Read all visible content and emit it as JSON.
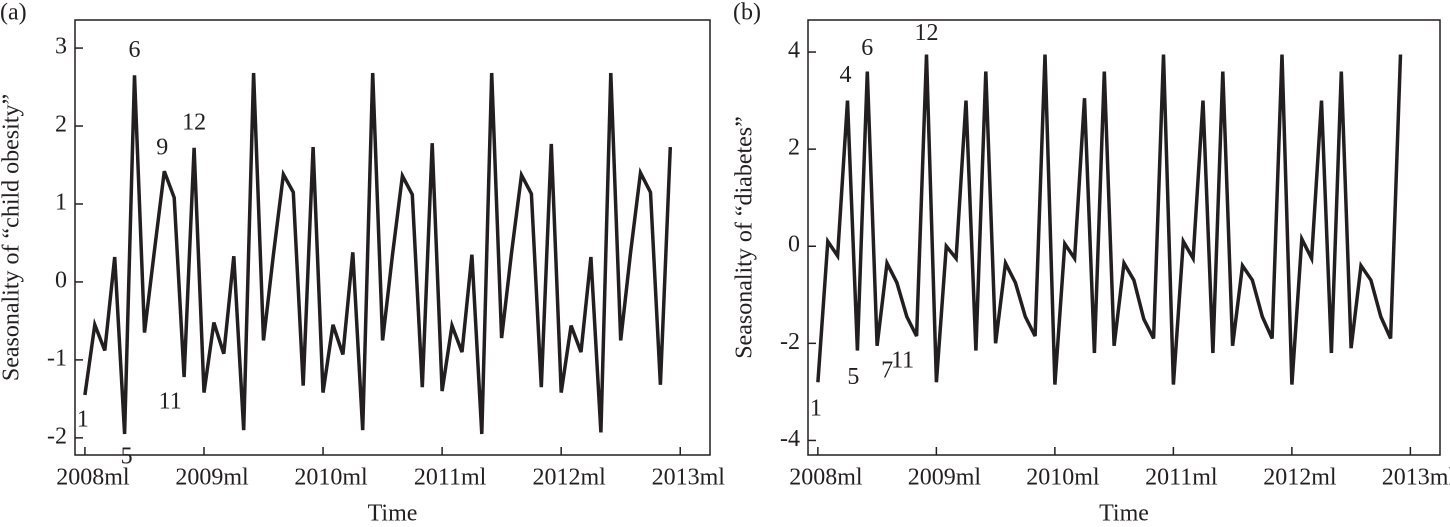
{
  "chart_data": [
    {
      "type": "line",
      "panel": "(a)",
      "ylabel": "Seasonality of “child obesity”",
      "xlabel": "Time",
      "x": [
        0,
        1,
        2,
        3,
        4,
        5,
        6,
        7,
        8,
        9,
        10,
        11,
        12,
        13,
        14,
        15,
        16,
        17,
        18,
        19,
        20,
        21,
        22,
        23,
        24,
        25,
        26,
        27,
        28,
        29,
        30,
        31,
        32,
        33,
        34,
        35,
        36,
        37,
        38,
        39,
        40,
        41,
        42,
        43,
        44,
        45,
        46,
        47,
        48,
        49,
        50,
        51,
        52,
        53,
        54,
        55,
        56,
        57,
        58,
        59
      ],
      "series": [
        {
          "name": "child obesity",
          "color": "#231f20",
          "values": [
            -1.45,
            -0.55,
            -0.88,
            0.32,
            -1.95,
            2.65,
            -0.65,
            0.4,
            1.42,
            1.08,
            -1.22,
            1.72,
            -1.42,
            -0.52,
            -0.92,
            0.33,
            -1.9,
            2.68,
            -0.75,
            0.35,
            1.38,
            1.15,
            -1.33,
            1.73,
            -1.42,
            -0.55,
            -0.93,
            0.38,
            -1.9,
            2.68,
            -0.75,
            0.35,
            1.36,
            1.12,
            -1.35,
            1.78,
            -1.4,
            -0.56,
            -0.9,
            0.35,
            -1.95,
            2.68,
            -0.72,
            0.38,
            1.37,
            1.13,
            -1.35,
            1.77,
            -1.42,
            -0.56,
            -0.9,
            0.32,
            -1.93,
            2.68,
            -0.75,
            0.38,
            1.4,
            1.15,
            -1.32,
            1.73
          ]
        }
      ],
      "annotations": [
        "1",
        "5",
        "6",
        "9",
        "11",
        "12"
      ],
      "xlim": [
        -1,
        63
      ],
      "xticks": [
        {
          "value": 0,
          "label": "2008ml"
        },
        {
          "value": 12,
          "label": "2009ml"
        },
        {
          "value": 24,
          "label": "2010ml"
        },
        {
          "value": 36,
          "label": "2011ml"
        },
        {
          "value": 48,
          "label": "2012ml"
        },
        {
          "value": 60,
          "label": "2013ml"
        }
      ],
      "ylim": [
        -2.22,
        3.36
      ],
      "yticks": [
        -2,
        -1,
        0,
        1,
        2,
        3
      ]
    },
    {
      "type": "line",
      "panel": "(b)",
      "ylabel": "Seasonality of “diabetes”",
      "xlabel": "Time",
      "x": [
        0,
        1,
        2,
        3,
        4,
        5,
        6,
        7,
        8,
        9,
        10,
        11,
        12,
        13,
        14,
        15,
        16,
        17,
        18,
        19,
        20,
        21,
        22,
        23,
        24,
        25,
        26,
        27,
        28,
        29,
        30,
        31,
        32,
        33,
        34,
        35,
        36,
        37,
        38,
        39,
        40,
        41,
        42,
        43,
        44,
        45,
        46,
        47,
        48,
        49,
        50,
        51,
        52,
        53,
        54,
        55,
        56,
        57,
        58,
        59
      ],
      "series": [
        {
          "name": "diabetes",
          "color": "#231f20",
          "values": [
            -2.8,
            0.1,
            -0.2,
            3.0,
            -2.15,
            3.6,
            -2.05,
            -0.35,
            -0.75,
            -1.45,
            -1.85,
            3.95,
            -2.8,
            0.0,
            -0.25,
            3.0,
            -2.15,
            3.6,
            -2.0,
            -0.35,
            -0.75,
            -1.45,
            -1.85,
            3.95,
            -2.85,
            0.05,
            -0.25,
            3.05,
            -2.2,
            3.6,
            -2.05,
            -0.35,
            -0.7,
            -1.5,
            -1.9,
            3.95,
            -2.85,
            0.1,
            -0.25,
            3.0,
            -2.2,
            3.6,
            -2.05,
            -0.4,
            -0.7,
            -1.45,
            -1.9,
            3.95,
            -2.85,
            0.15,
            -0.25,
            3.0,
            -2.2,
            3.6,
            -2.1,
            -0.4,
            -0.7,
            -1.45,
            -1.9,
            3.95
          ]
        }
      ],
      "annotations": [
        "1",
        "4",
        "5",
        "6",
        "7",
        "11",
        "12"
      ],
      "xlim": [
        -1,
        63
      ],
      "xticks": [
        {
          "value": 0,
          "label": "2008ml"
        },
        {
          "value": 12,
          "label": "2009ml"
        },
        {
          "value": 24,
          "label": "2010ml"
        },
        {
          "value": 36,
          "label": "2011ml"
        },
        {
          "value": 48,
          "label": "2012ml"
        },
        {
          "value": 60,
          "label": "2013ml"
        }
      ],
      "ylim": [
        -4.3,
        4.66
      ],
      "yticks": [
        -4,
        -2,
        0,
        2,
        4
      ]
    }
  ]
}
